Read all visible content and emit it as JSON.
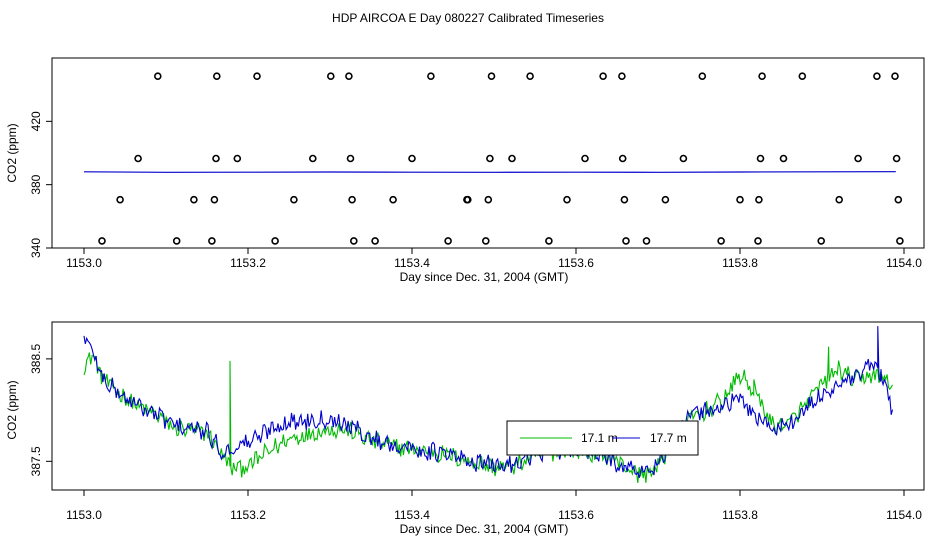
{
  "figure": {
    "title": "HDP AIRCOA E  Day 080227  Calibrated Timeseries"
  },
  "chart_data": [
    {
      "type": "scatter",
      "xlabel": "Day since Dec. 31, 2004 (GMT)",
      "ylabel": "CO2 (ppm)",
      "xlim": [
        1153.0,
        1154.0
      ],
      "ylim": [
        340,
        460
      ],
      "xticks": [
        "1153.0",
        "1153.2",
        "1153.4",
        "1153.6",
        "1153.8",
        "1154.0"
      ],
      "yticks": [
        "340",
        "380",
        "420"
      ],
      "ytick_values": [
        340,
        380,
        420
      ],
      "grid": false,
      "colors": {
        "points": "#000000",
        "line": "#0000cc"
      },
      "points": [
        [
          1153.022,
          344.5
        ],
        [
          1153.044,
          370.5
        ],
        [
          1153.066,
          396.5
        ],
        [
          1153.09,
          448.5
        ],
        [
          1153.113,
          344.5
        ],
        [
          1153.134,
          370.5
        ],
        [
          1153.156,
          344.5
        ],
        [
          1153.159,
          370.5
        ],
        [
          1153.161,
          396.5
        ],
        [
          1153.162,
          448.5
        ],
        [
          1153.187,
          396.5
        ],
        [
          1153.211,
          448.5
        ],
        [
          1153.233,
          344.5
        ],
        [
          1153.256,
          370.5
        ],
        [
          1153.279,
          396.5
        ],
        [
          1153.301,
          448.5
        ],
        [
          1153.323,
          448.5
        ],
        [
          1153.325,
          396.5
        ],
        [
          1153.327,
          370.5
        ],
        [
          1153.329,
          344.5
        ],
        [
          1153.355,
          344.5
        ],
        [
          1153.377,
          370.5
        ],
        [
          1153.4,
          396.5
        ],
        [
          1153.423,
          448.5
        ],
        [
          1153.444,
          344.5
        ],
        [
          1153.467,
          370.5
        ],
        [
          1153.468,
          370.5
        ],
        [
          1153.49,
          344.5
        ],
        [
          1153.493,
          370.5
        ],
        [
          1153.495,
          396.5
        ],
        [
          1153.497,
          448.5
        ],
        [
          1153.522,
          396.5
        ],
        [
          1153.544,
          448.5
        ],
        [
          1153.567,
          344.5
        ],
        [
          1153.589,
          370.5
        ],
        [
          1153.611,
          396.5
        ],
        [
          1153.633,
          448.5
        ],
        [
          1153.656,
          448.5
        ],
        [
          1153.657,
          396.5
        ],
        [
          1153.659,
          370.5
        ],
        [
          1153.661,
          344.5
        ],
        [
          1153.686,
          344.5
        ],
        [
          1153.709,
          370.5
        ],
        [
          1153.731,
          396.5
        ],
        [
          1153.754,
          448.5
        ],
        [
          1153.777,
          344.5
        ],
        [
          1153.8,
          370.5
        ],
        [
          1153.822,
          344.5
        ],
        [
          1153.823,
          370.5
        ],
        [
          1153.825,
          396.5
        ],
        [
          1153.827,
          448.5
        ],
        [
          1153.853,
          396.5
        ],
        [
          1153.876,
          448.5
        ],
        [
          1153.899,
          344.5
        ],
        [
          1153.921,
          370.5
        ],
        [
          1153.944,
          396.5
        ],
        [
          1153.967,
          448.5
        ],
        [
          1153.989,
          448.5
        ],
        [
          1153.991,
          396.5
        ],
        [
          1153.993,
          370.5
        ],
        [
          1153.995,
          344.5
        ]
      ],
      "line": {
        "x": [
          1153.0,
          1153.1,
          1153.2,
          1153.3,
          1153.4,
          1153.5,
          1153.6,
          1153.7,
          1153.8,
          1153.9,
          1153.99
        ],
        "y": [
          388.1,
          387.8,
          387.9,
          388.0,
          387.9,
          387.8,
          387.9,
          387.8,
          388.0,
          388.1,
          388.2
        ]
      }
    },
    {
      "type": "line",
      "xlabel": "Day since Dec. 31, 2004 (GMT)",
      "ylabel": "CO2 (ppm)",
      "xlim": [
        1153.0,
        1154.0
      ],
      "ylim": [
        387.22,
        388.86
      ],
      "xticks": [
        "1153.0",
        "1153.2",
        "1153.4",
        "1153.6",
        "1153.8",
        "1154.0"
      ],
      "yticks": [
        "387.5",
        "388.5"
      ],
      "ytick_values": [
        387.5,
        388.5
      ],
      "grid": false,
      "legend": {
        "placement": "center-right",
        "entries": [
          "17.1 m",
          "17.7 m"
        ]
      },
      "series": [
        {
          "name": "17.1 m",
          "color": "#00bb00",
          "anchors": [
            [
              1153.0,
              388.42
            ],
            [
              1153.01,
              388.55
            ],
            [
              1153.02,
              388.35
            ],
            [
              1153.03,
              388.25
            ],
            [
              1153.05,
              388.12
            ],
            [
              1153.07,
              388.02
            ],
            [
              1153.09,
              387.95
            ],
            [
              1153.11,
              387.82
            ],
            [
              1153.13,
              387.8
            ],
            [
              1153.15,
              387.78
            ],
            [
              1153.17,
              387.55
            ],
            [
              1153.18,
              387.43
            ],
            [
              1153.2,
              387.45
            ],
            [
              1153.22,
              387.57
            ],
            [
              1153.25,
              387.72
            ],
            [
              1153.27,
              387.76
            ],
            [
              1153.29,
              387.8
            ],
            [
              1153.31,
              387.82
            ],
            [
              1153.33,
              387.78
            ],
            [
              1153.35,
              387.7
            ],
            [
              1153.37,
              387.66
            ],
            [
              1153.39,
              387.63
            ],
            [
              1153.42,
              387.6
            ],
            [
              1153.45,
              387.55
            ],
            [
              1153.47,
              387.5
            ],
            [
              1153.5,
              387.44
            ],
            [
              1153.52,
              387.45
            ],
            [
              1153.55,
              387.54
            ],
            [
              1153.57,
              387.59
            ],
            [
              1153.6,
              387.61
            ],
            [
              1153.62,
              387.57
            ],
            [
              1153.64,
              387.55
            ],
            [
              1153.66,
              387.45
            ],
            [
              1153.68,
              387.36
            ],
            [
              1153.7,
              387.45
            ],
            [
              1153.72,
              387.7
            ],
            [
              1153.74,
              387.92
            ],
            [
              1153.76,
              388.0
            ],
            [
              1153.78,
              388.1
            ],
            [
              1153.8,
              388.35
            ],
            [
              1153.82,
              388.15
            ],
            [
              1153.84,
              387.85
            ],
            [
              1153.86,
              387.87
            ],
            [
              1153.88,
              388.05
            ],
            [
              1153.9,
              388.25
            ],
            [
              1153.92,
              388.4
            ],
            [
              1153.94,
              388.28
            ],
            [
              1153.96,
              388.35
            ],
            [
              1153.98,
              388.3
            ],
            [
              1153.986,
              388.2
            ]
          ],
          "spikes": [
            [
              1153.178,
              388.48
            ],
            [
              1153.178,
              387.45
            ],
            [
              1153.817,
              388.3
            ],
            [
              1153.908,
              388.62
            ]
          ]
        },
        {
          "name": "17.7 m",
          "color": "#0000cc",
          "anchors": [
            [
              1153.0,
              388.7
            ],
            [
              1153.01,
              388.6
            ],
            [
              1153.02,
              388.35
            ],
            [
              1153.03,
              388.25
            ],
            [
              1153.05,
              388.12
            ],
            [
              1153.07,
              388.02
            ],
            [
              1153.09,
              387.95
            ],
            [
              1153.11,
              387.85
            ],
            [
              1153.13,
              387.82
            ],
            [
              1153.15,
              387.78
            ],
            [
              1153.17,
              387.58
            ],
            [
              1153.19,
              387.66
            ],
            [
              1153.21,
              387.72
            ],
            [
              1153.23,
              387.84
            ],
            [
              1153.25,
              387.88
            ],
            [
              1153.27,
              387.9
            ],
            [
              1153.29,
              387.92
            ],
            [
              1153.31,
              387.9
            ],
            [
              1153.33,
              387.82
            ],
            [
              1153.35,
              387.72
            ],
            [
              1153.37,
              387.68
            ],
            [
              1153.39,
              387.64
            ],
            [
              1153.42,
              387.6
            ],
            [
              1153.45,
              387.55
            ],
            [
              1153.47,
              387.5
            ],
            [
              1153.5,
              387.46
            ],
            [
              1153.52,
              387.47
            ],
            [
              1153.55,
              387.56
            ],
            [
              1153.57,
              387.6
            ],
            [
              1153.6,
              387.63
            ],
            [
              1153.62,
              387.59
            ],
            [
              1153.64,
              387.52
            ],
            [
              1153.66,
              387.45
            ],
            [
              1153.68,
              387.38
            ],
            [
              1153.7,
              387.48
            ],
            [
              1153.72,
              387.75
            ],
            [
              1153.74,
              387.95
            ],
            [
              1153.76,
              388.0
            ],
            [
              1153.78,
              388.05
            ],
            [
              1153.8,
              388.1
            ],
            [
              1153.82,
              387.95
            ],
            [
              1153.84,
              387.82
            ],
            [
              1153.86,
              387.86
            ],
            [
              1153.88,
              388.0
            ],
            [
              1153.9,
              388.15
            ],
            [
              1153.92,
              388.25
            ],
            [
              1153.94,
              388.3
            ],
            [
              1153.96,
              388.45
            ],
            [
              1153.98,
              388.2
            ],
            [
              1153.986,
              387.95
            ]
          ],
          "spikes": [
            [
              1153.968,
              388.82
            ],
            [
              1153.972,
              388.4
            ]
          ]
        }
      ]
    }
  ]
}
